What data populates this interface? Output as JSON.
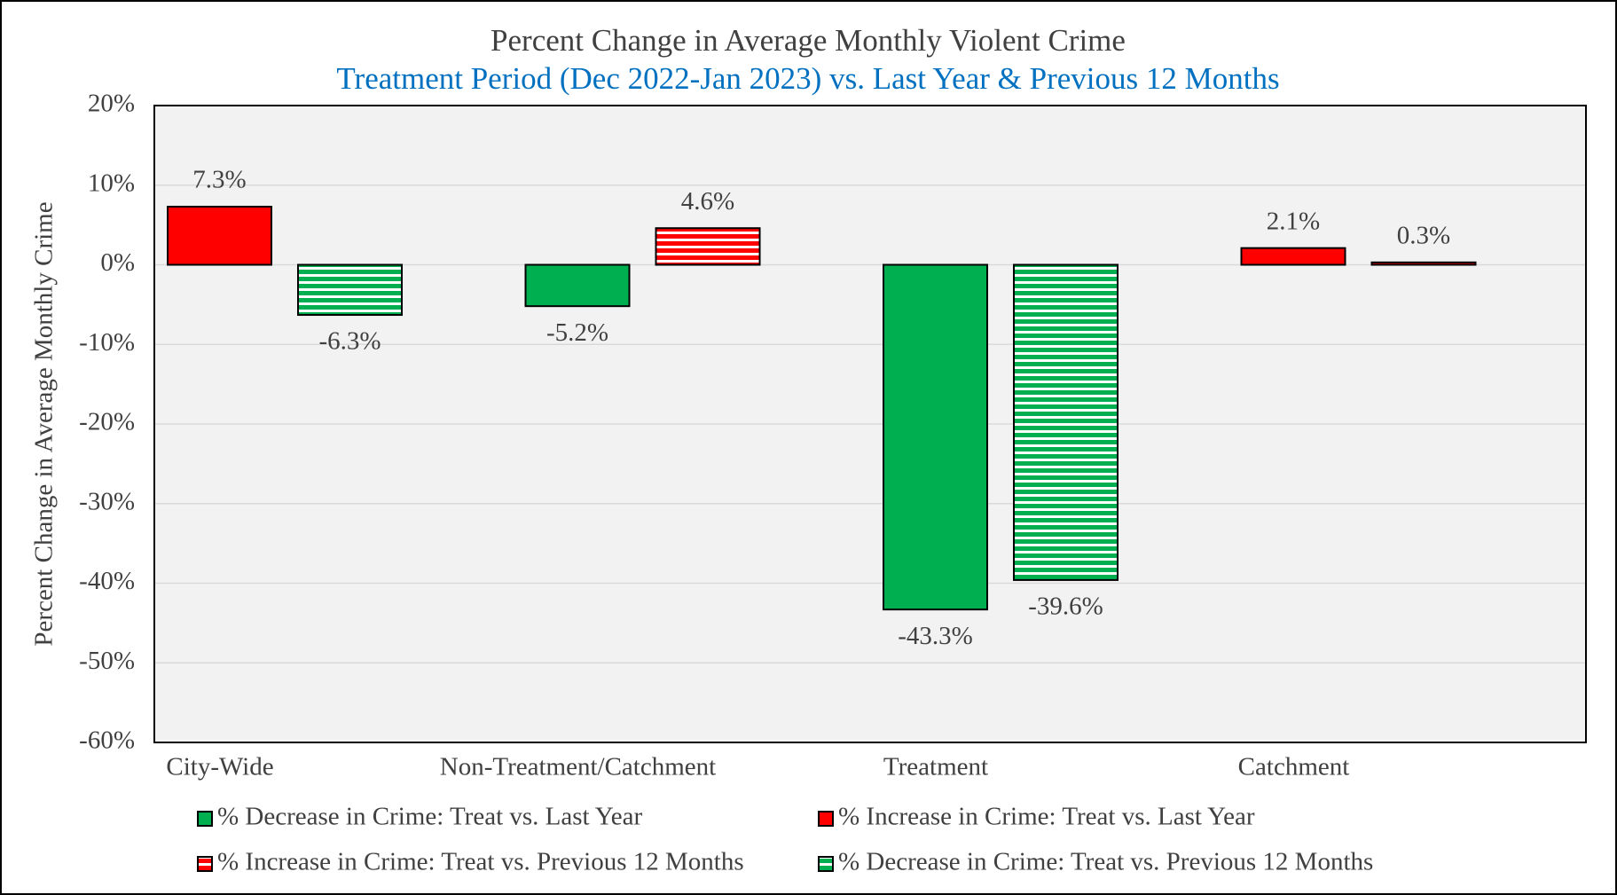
{
  "chart_data": {
    "type": "bar",
    "title": "Percent Change in Average Monthly Violent Crime",
    "subtitle": "Treatment Period (Dec 2022-Jan 2023) vs. Last Year & Previous 12 Months",
    "y_label": "Percent Change in Average Monthly Crime",
    "categories": [
      "City-Wide",
      "Non-Treatment/Catchment",
      "Treatment",
      "Catchment"
    ],
    "series": [
      {
        "name": "% Decrease in Crime: Treat vs. Last Year",
        "color": "#00b050",
        "pattern": "solid",
        "values": [
          null,
          -5.2,
          -43.3,
          null
        ],
        "value_labels": [
          null,
          "-5.2%",
          "-43.3%",
          null
        ]
      },
      {
        "name": "% Increase in Crime: Treat vs. Last Year",
        "color": "#ff0000",
        "pattern": "solid",
        "values": [
          7.3,
          null,
          null,
          2.1
        ],
        "value_labels": [
          "7.3%",
          null,
          null,
          "2.1%"
        ]
      },
      {
        "name": "% Increase in Crime: Treat vs. Previous 12 Months",
        "color": "#ff0000",
        "pattern": "stripes",
        "values": [
          null,
          4.6,
          null,
          0.3
        ],
        "value_labels": [
          null,
          "4.6%",
          null,
          "0.3%"
        ]
      },
      {
        "name": "% Decrease in Crime: Treat vs. Previous 12 Months",
        "color": "#00b050",
        "pattern": "stripes",
        "values": [
          -6.3,
          null,
          -39.6,
          null
        ],
        "value_labels": [
          "-6.3%",
          null,
          "-39.6%",
          null
        ]
      }
    ],
    "ylim": [
      -60,
      20
    ],
    "yticks": [
      {
        "value": -60,
        "label": "-60%"
      },
      {
        "value": -50,
        "label": "-50%"
      },
      {
        "value": -40,
        "label": "-40%"
      },
      {
        "value": -30,
        "label": "-30%"
      },
      {
        "value": -20,
        "label": "-20%"
      },
      {
        "value": -10,
        "label": "-10%"
      },
      {
        "value": 0,
        "label": "0%"
      },
      {
        "value": 10,
        "label": "10%"
      },
      {
        "value": 20,
        "label": "20%"
      }
    ],
    "grid": true,
    "legend": "bottom"
  }
}
